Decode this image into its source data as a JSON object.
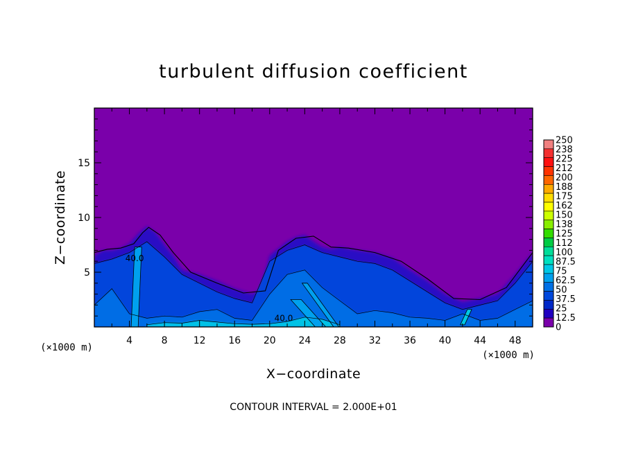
{
  "chart_data": {
    "type": "heatmap",
    "title": "turbulent diffusion coefficient",
    "xlabel": "X−coordinate",
    "ylabel": "Z−coordinate",
    "x_unit_left": "(×1000 m)",
    "x_unit_right": "(×1000 m)",
    "xlim": [
      0,
      50
    ],
    "ylim": [
      0,
      20
    ],
    "x_ticks": [
      4,
      8,
      12,
      16,
      20,
      24,
      28,
      32,
      36,
      40,
      44,
      48
    ],
    "y_ticks": [
      5,
      10,
      15
    ],
    "contour_interval_text": "CONTOUR INTERVAL = 2.000E+01",
    "contour_labels": [
      {
        "text": "40.0",
        "x": 4.6,
        "y": 6.0
      },
      {
        "text": "40.0",
        "x": 21.6,
        "y": 0.55
      }
    ],
    "colorbar": {
      "labels": [
        "250",
        "238",
        "225",
        "212",
        "200",
        "188",
        "175",
        "162",
        "150",
        "138",
        "125",
        "112",
        "100",
        "87.5",
        "75",
        "62.5",
        "50",
        "37.5",
        "25",
        "12.5",
        "0"
      ],
      "colors_top_to_bottom": [
        "#f08080",
        "#f43030",
        "#ff1010",
        "#ff3300",
        "#ff6600",
        "#ffaa00",
        "#ffdd00",
        "#ffff00",
        "#ccff00",
        "#88ee00",
        "#33dd00",
        "#00cc44",
        "#00dd99",
        "#00e0c0",
        "#00c8e6",
        "#00a0ee",
        "#0070e6",
        "#0048dd",
        "#0028c8",
        "#2000c0",
        "#7a00aa"
      ]
    },
    "field": {
      "background_value": 0,
      "background_color": "#7a00aa",
      "surface_profile": {
        "x": [
          0,
          1,
          2,
          3,
          4,
          5,
          6,
          7,
          8,
          9,
          10,
          12,
          14,
          16,
          18,
          19,
          20,
          22,
          23,
          24,
          25,
          26,
          27,
          28,
          30,
          32,
          34,
          36,
          38,
          40,
          42,
          44,
          46,
          48,
          50
        ],
        "z": [
          6.5,
          7.0,
          7.0,
          7.2,
          7.6,
          8.5,
          9.2,
          8.6,
          7.5,
          6.5,
          5.2,
          4.8,
          4.2,
          3.5,
          3.0,
          3.4,
          6.5,
          7.8,
          8.2,
          8.4,
          7.8,
          7.3,
          7.1,
          7.3,
          7.0,
          6.8,
          6.3,
          5.2,
          4.2,
          3.0,
          2.3,
          2.6,
          3.0,
          4.8,
          6.8
        ]
      },
      "regions": [
        {
          "value": 40,
          "color": "#0048dd",
          "x": [
            0,
            2,
            4,
            6,
            8,
            10,
            12,
            14,
            16,
            18,
            20,
            22,
            24,
            26,
            28,
            30,
            32,
            34,
            36,
            38,
            40,
            42,
            44,
            46,
            48,
            50
          ],
          "z": [
            5.8,
            6.2,
            6.8,
            7.8,
            6.4,
            4.8,
            4.0,
            3.2,
            2.6,
            2.2,
            6.0,
            7.0,
            7.5,
            6.8,
            6.4,
            6.0,
            5.8,
            5.2,
            4.2,
            3.2,
            2.2,
            1.6,
            2.0,
            2.4,
            4.0,
            6.0
          ]
        },
        {
          "value": 55,
          "color": "#0070e6",
          "x": [
            0,
            2,
            4,
            6,
            8,
            10,
            12,
            14,
            16,
            18,
            20,
            22,
            24,
            26,
            28,
            30,
            32,
            34,
            36,
            38,
            40,
            42,
            44,
            46,
            48,
            50
          ],
          "z": [
            2.0,
            3.5,
            1.2,
            0.8,
            1.0,
            0.9,
            1.4,
            1.6,
            0.8,
            0.6,
            3.0,
            4.8,
            5.2,
            3.6,
            2.4,
            1.2,
            1.5,
            1.3,
            0.9,
            0.8,
            0.6,
            1.2,
            0.6,
            0.8,
            1.6,
            2.4
          ]
        },
        {
          "value": 70,
          "color": "#00c8e6",
          "x": [
            6,
            8,
            10,
            12,
            14,
            16,
            18,
            20,
            22,
            24,
            26,
            28
          ],
          "z": [
            0.2,
            0.4,
            0.35,
            0.6,
            0.45,
            0.3,
            0.25,
            0.3,
            0.5,
            0.9,
            0.7,
            0.2
          ]
        }
      ],
      "plumes": [
        {
          "value": 60,
          "color": "#00a0ee",
          "from": [
            4.6,
            0
          ],
          "to": [
            5.0,
            7.3
          ],
          "width": 0.8
        },
        {
          "value": 60,
          "color": "#00a0ee",
          "from": [
            23.0,
            2.5
          ],
          "to": [
            25.8,
            0
          ],
          "width": 1.2
        },
        {
          "value": 60,
          "color": "#00a0ee",
          "from": [
            24.0,
            4.0
          ],
          "to": [
            27.6,
            0
          ],
          "width": 0.6
        },
        {
          "value": 75,
          "color": "#00c8e6",
          "from": [
            42.0,
            0.2
          ],
          "to": [
            42.8,
            1.6
          ],
          "width": 0.5
        }
      ],
      "contours": [
        {
          "value": 20,
          "x": [
            0,
            1.5,
            3,
            4.5,
            5.5,
            6.2,
            7.5,
            9,
            11,
            14,
            17,
            19.5,
            21,
            23,
            25,
            27,
            29,
            32,
            35,
            38,
            41,
            44,
            47,
            50
          ],
          "z": [
            6.8,
            7.1,
            7.2,
            7.6,
            8.6,
            9.1,
            8.4,
            6.8,
            5.0,
            4.0,
            3.1,
            3.3,
            7.0,
            8.1,
            8.3,
            7.3,
            7.2,
            6.8,
            6.0,
            4.4,
            2.6,
            2.5,
            3.6,
            6.8
          ]
        }
      ]
    }
  }
}
